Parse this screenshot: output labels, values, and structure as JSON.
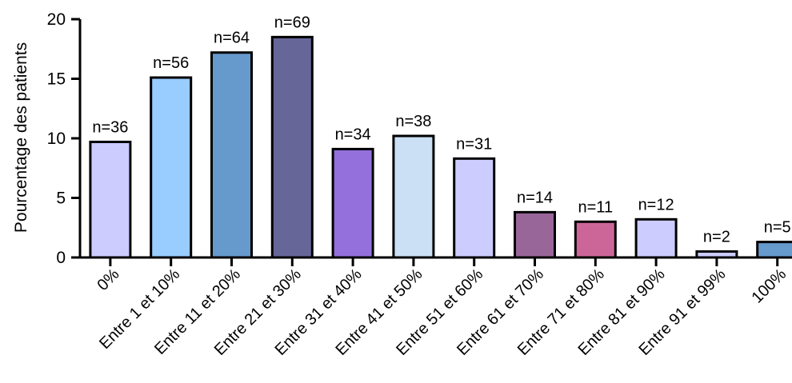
{
  "chart_data": {
    "type": "bar",
    "title": "",
    "xlabel": "",
    "ylabel": "Pourcentage  des patients",
    "ylim": [
      0,
      20
    ],
    "yticks": [
      0,
      5,
      10,
      15,
      20
    ],
    "grid": false,
    "legend": "none",
    "categories": [
      "0%",
      "Entre 1 et 10%",
      "Entre 11 et 20%",
      "Entre 21 et 30%",
      "Entre 31 et 40%",
      "Entre 41 et 50%",
      "Entre 51 et 60%",
      "Entre 61 et 70%",
      "Entre 71 et 80%",
      "Entre 81 et 90%",
      "Entre 91 et 99%",
      "100%"
    ],
    "values": [
      9.7,
      15.1,
      17.2,
      18.5,
      9.1,
      10.2,
      8.3,
      3.8,
      3.0,
      3.2,
      0.5,
      1.3
    ],
    "data_labels": [
      "n=36",
      "n=56",
      "n=64",
      "n=69",
      "n=34",
      "n=38",
      "n=31",
      "n=14",
      "n=11",
      "n=12",
      "n=2",
      "n=5"
    ],
    "colors": [
      "#ccccff",
      "#99ccff",
      "#6699cc",
      "#666699",
      "#9370db",
      "#cce0f5",
      "#ccccff",
      "#996699",
      "#cc6699",
      "#ccccff",
      "#ccccff",
      "#6699cc"
    ]
  }
}
